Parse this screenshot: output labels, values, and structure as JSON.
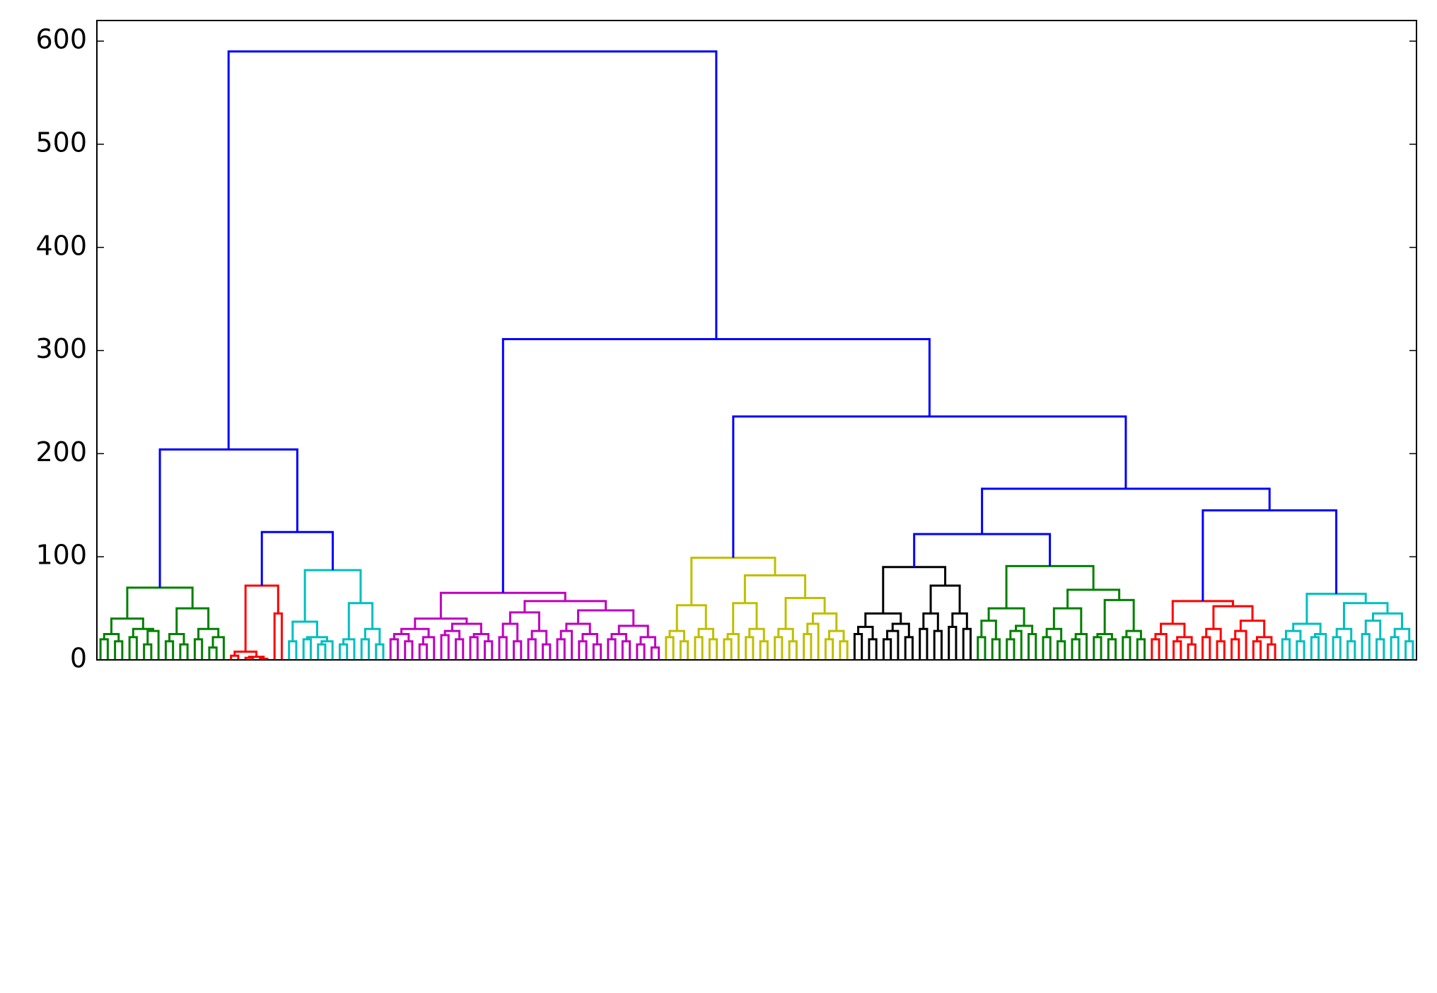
{
  "chart_data": {
    "type": "dendrogram",
    "ylim": [
      0,
      620
    ],
    "yticks": [
      0,
      100,
      200,
      300,
      400,
      500,
      600
    ],
    "above_threshold_color": "#0000ff",
    "color_threshold": 100,
    "cluster_colors": [
      "#008000",
      "#ff0000",
      "#00bfbf",
      "#bf00bf",
      "#bfbf00",
      "#000000",
      "#008000",
      "#ff0000",
      "#00bfbf"
    ],
    "tree": [
      590,
      [
        204,
        [
          70,
          [
            40,
            [
              25,
              [
                20,
                null,
                null
              ],
              [
                18,
                null,
                null
              ]
            ],
            [
              30,
              [
                22,
                null,
                null
              ],
              [
                28,
                [
                  15,
                  null,
                  null
                ],
                null
              ]
            ]
          ],
          [
            50,
            [
              25,
              [
                18,
                null,
                null
              ],
              [
                15,
                null,
                null
              ]
            ],
            [
              30,
              [
                20,
                null,
                null
              ],
              [
                22,
                [
                  12,
                  null,
                  null
                ],
                null
              ]
            ]
          ]
        ],
        [
          124,
          [
            72,
            [
              8,
              [
                4,
                null,
                null
              ],
              [
                3,
                [
                  2,
                  null,
                  null
                ],
                [
                  1,
                  null,
                  null
                ]
              ]
            ],
            [
              45,
              null,
              null
            ]
          ],
          [
            87,
            [
              37,
              [
                18,
                null,
                null
              ],
              [
                22,
                [
                  20,
                  null,
                  null
                ],
                [
                  18,
                  [
                    15,
                    null,
                    null
                  ],
                  null
                ]
              ]
            ],
            [
              55,
              [
                20,
                [
                  15,
                  null,
                  null
                ],
                null
              ],
              [
                30,
                [
                  20,
                  null,
                  null
                ],
                [
                  15,
                  null,
                  null
                ]
              ]
            ]
          ]
        ]
      ],
      [
        311,
        [
          65,
          [
            40,
            [
              30,
              [
                25,
                [
                  20,
                  null,
                  null
                ],
                [
                  18,
                  null,
                  null
                ]
              ],
              [
                22,
                [
                  15,
                  null,
                  null
                ],
                null
              ]
            ],
            [
              35,
              [
                28,
                [
                  24,
                  null,
                  null
                ],
                [
                  20,
                  null,
                  null
                ]
              ],
              [
                25,
                [
                  22,
                  null,
                  null
                ],
                [
                  18,
                  null,
                  null
                ]
              ]
            ]
          ],
          [
            57,
            [
              46,
              [
                35,
                [
                  22,
                  null,
                  null
                ],
                [
                  18,
                  null,
                  null
                ]
              ],
              [
                28,
                [
                  20,
                  null,
                  null
                ],
                [
                  15,
                  null,
                  null
                ]
              ]
            ],
            [
              48,
              [
                35,
                [
                  28,
                  [
                    20,
                    null,
                    null
                  ],
                  null
                ],
                [
                  25,
                  [
                    18,
                    null,
                    null
                  ],
                  [
                    15,
                    null,
                    null
                  ]
                ]
              ],
              [
                33,
                [
                  25,
                  [
                    20,
                    null,
                    null
                  ],
                  [
                    18,
                    null,
                    null
                  ]
                ],
                [
                  22,
                  [
                    15,
                    null,
                    null
                  ],
                  [
                    12,
                    null,
                    null
                  ]
                ]
              ]
            ]
          ]
        ],
        [
          236,
          [
            99,
            [
              53,
              [
                28,
                [
                  22,
                  null,
                  null
                ],
                [
                  18,
                  null,
                  null
                ]
              ],
              [
                30,
                [
                  22,
                  null,
                  null
                ],
                [
                  20,
                  null,
                  null
                ]
              ]
            ],
            [
              82,
              [
                55,
                [
                  25,
                  [
                    20,
                    null,
                    null
                  ],
                  null
                ],
                [
                  30,
                  [
                    22,
                    null,
                    null
                  ],
                  [
                    18,
                    null,
                    null
                  ]
                ]
              ],
              [
                60,
                [
                  30,
                  [
                    22,
                    null,
                    null
                  ],
                  [
                    18,
                    null,
                    null
                  ]
                ],
                [
                  45,
                  [
                    35,
                    [
                      25,
                      null,
                      null
                    ],
                    null
                  ],
                  [
                    28,
                    [
                      20,
                      null,
                      null
                    ],
                    [
                      18,
                      null,
                      null
                    ]
                  ]
                ]
              ]
            ]
          ],
          [
            166,
            [
              122,
              [
                90,
                [
                  45,
                  [
                    32,
                    [
                      25,
                      null,
                      null
                    ],
                    [
                      20,
                      null,
                      null
                    ]
                  ],
                  [
                    35,
                    [
                      28,
                      [
                        20,
                        null,
                        null
                      ],
                      null
                    ],
                    [
                      22,
                      null,
                      null
                    ]
                  ]
                ],
                [
                  72,
                  [
                    45,
                    [
                      30,
                      null,
                      null
                    ],
                    [
                      28,
                      null,
                      null
                    ]
                  ],
                  [
                    45,
                    [
                      32,
                      null,
                      null
                    ],
                    [
                      30,
                      null,
                      null
                    ]
                  ]
                ]
              ],
              [
                91,
                [
                  50,
                  [
                    38,
                    [
                      22,
                      null,
                      null
                    ],
                    [
                      20,
                      null,
                      null
                    ]
                  ],
                  [
                    33,
                    [
                      28,
                      [
                        20,
                        null,
                        null
                      ],
                      null
                    ],
                    [
                      25,
                      null,
                      null
                    ]
                  ]
                ],
                [
                  68,
                  [
                    50,
                    [
                      30,
                      [
                        22,
                        null,
                        null
                      ],
                      [
                        18,
                        null,
                        null
                      ]
                    ],
                    [
                      25,
                      [
                        20,
                        null,
                        null
                      ],
                      null
                    ]
                  ],
                  [
                    58,
                    [
                      25,
                      [
                        22,
                        null,
                        null
                      ],
                      [
                        20,
                        null,
                        null
                      ]
                    ],
                    [
                      28,
                      [
                        22,
                        null,
                        null
                      ],
                      [
                        20,
                        null,
                        null
                      ]
                    ]
                  ]
                ]
              ]
            ],
            [
              145,
              [
                57,
                [
                  35,
                  [
                    25,
                    [
                      20,
                      null,
                      null
                    ],
                    null
                  ],
                  [
                    22,
                    [
                      18,
                      null,
                      null
                    ],
                    [
                      15,
                      null,
                      null
                    ]
                  ]
                ],
                [
                  52,
                  [
                    30,
                    [
                      22,
                      null,
                      null
                    ],
                    [
                      18,
                      null,
                      null
                    ]
                  ],
                  [
                    38,
                    [
                      28,
                      [
                        20,
                        null,
                        null
                      ],
                      null
                    ],
                    [
                      22,
                      [
                        18,
                        null,
                        null
                      ],
                      [
                        15,
                        null,
                        null
                      ]
                    ]
                  ]
                ]
              ],
              [
                64,
                [
                  35,
                  [
                    28,
                    [
                      20,
                      null,
                      null
                    ],
                    [
                      18,
                      null,
                      null
                    ]
                  ],
                  [
                    25,
                    [
                      22,
                      null,
                      null
                    ],
                    null
                  ]
                ],
                [
                  55,
                  [
                    30,
                    [
                      22,
                      null,
                      null
                    ],
                    [
                      18,
                      null,
                      null
                    ]
                  ],
                  [
                    45,
                    [
                      38,
                      [
                        25,
                        null,
                        null
                      ],
                      [
                        20,
                        null,
                        null
                      ]
                    ],
                    [
                      30,
                      [
                        22,
                        null,
                        null
                      ],
                      [
                        18,
                        null,
                        null
                      ]
                    ]
                  ]
                ]
              ]
            ]
          ]
        ]
      ]
    ]
  }
}
